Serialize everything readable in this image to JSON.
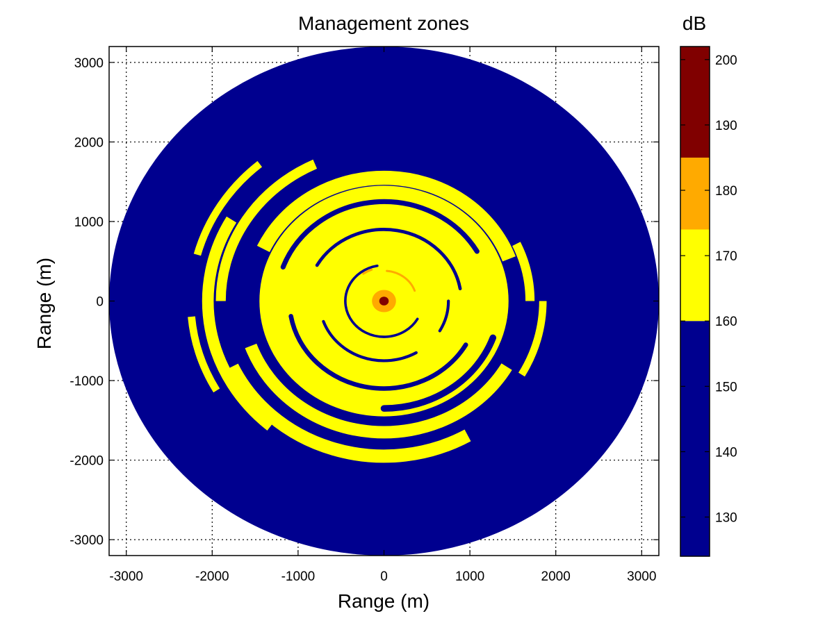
{
  "chart_data": {
    "type": "heatmap",
    "title": "Management zones",
    "xlabel": "Range (m)",
    "ylabel": "Range (m)",
    "xlim": [
      -3200,
      3200
    ],
    "ylim": [
      -3200,
      3200
    ],
    "x_ticks": [
      -3000,
      -2000,
      -1000,
      0,
      1000,
      2000,
      3000
    ],
    "y_ticks": [
      -3000,
      -2000,
      -1000,
      0,
      1000,
      2000,
      3000
    ],
    "x_tick_labels": [
      "-3000",
      "-2000",
      "-1000",
      "0",
      "1000",
      "2000",
      "3000"
    ],
    "y_tick_labels": [
      "-3000",
      "-2000",
      "-1000",
      "0",
      "1000",
      "2000",
      "3000"
    ],
    "grid": true,
    "disk_radius": 3200,
    "colorbar": {
      "title": "dB",
      "range": [
        124,
        202
      ],
      "ticks": [
        130,
        140,
        150,
        160,
        170,
        180,
        190,
        200
      ],
      "tick_labels": [
        "130",
        "140",
        "150",
        "160",
        "170",
        "180",
        "190",
        "200"
      ],
      "bands": [
        {
          "from": 124,
          "to": 160,
          "color": "#00008f"
        },
        {
          "from": 160,
          "to": 174,
          "color": "#ffff00"
        },
        {
          "from": 174,
          "to": 185,
          "color": "#ffaa00"
        },
        {
          "from": 185,
          "to": 202,
          "color": "#800000"
        }
      ]
    },
    "zones": {
      "source_core": {
        "center": [
          0,
          0
        ],
        "radius": 55,
        "color": "#800000"
      },
      "source_halo": {
        "center": [
          0,
          0
        ],
        "radius": 140,
        "color": "#ffaa00"
      },
      "inner_zone": {
        "center": [
          0,
          0
        ],
        "radius": 1450,
        "color": "#ffff00"
      },
      "arcs_yellow": [
        {
          "r": 1550,
          "start": 20,
          "end": 155,
          "width": 170
        },
        {
          "r": 1650,
          "start": 200,
          "end": 330,
          "width": 150
        },
        {
          "r": 1900,
          "start": 115,
          "end": 180,
          "width": 120
        },
        {
          "r": 1950,
          "start": 205,
          "end": 300,
          "width": 160
        },
        {
          "r": 2050,
          "start": 150,
          "end": 230,
          "width": 140
        },
        {
          "r": 2250,
          "start": 130,
          "end": 165,
          "width": 90
        },
        {
          "r": 2250,
          "start": 185,
          "end": 210,
          "width": 90
        },
        {
          "r": 1850,
          "start": 330,
          "end": 360,
          "width": 90
        },
        {
          "r": 1700,
          "start": 0,
          "end": 25,
          "width": 110
        }
      ],
      "arcs_blue": [
        {
          "r": 1250,
          "start": 30,
          "end": 160,
          "width": 60
        },
        {
          "r": 1100,
          "start": 190,
          "end": 330,
          "width": 55
        },
        {
          "r": 900,
          "start": 10,
          "end": 150,
          "width": 40
        },
        {
          "r": 750,
          "start": 200,
          "end": 300,
          "width": 35
        },
        {
          "r": 750,
          "start": 330,
          "end": 360,
          "width": 35
        },
        {
          "r": 450,
          "start": 100,
          "end": 330,
          "width": 30
        },
        {
          "r": 1350,
          "start": 270,
          "end": 340,
          "width": 80
        }
      ],
      "arcs_orange": [
        {
          "r": 380,
          "start": 20,
          "end": 85,
          "width": 25
        },
        {
          "r": 420,
          "start": 110,
          "end": 125,
          "width": 25
        }
      ]
    },
    "colors": {
      "background": "#00008f",
      "grid": "#000000"
    }
  }
}
